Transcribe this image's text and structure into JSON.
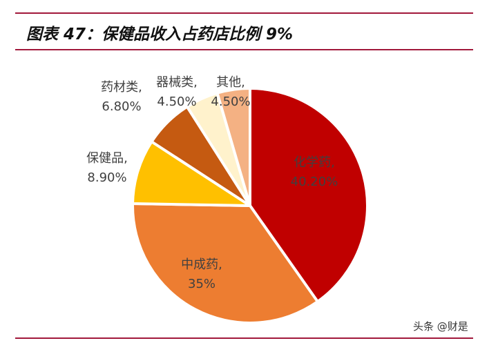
{
  "title": "图表 47：保健品收入占药店比例 9%",
  "watermark": "头条 @财是",
  "chart_data": {
    "type": "pie",
    "title": "图表 47：保健品收入占药店比例 9%",
    "start": "12 o'clock, clockwise",
    "slices": [
      {
        "name": "化学药",
        "value": 40.2,
        "label": "40.20%",
        "color": "#c00000"
      },
      {
        "name": "中成药",
        "value": 35,
        "label": "35%",
        "color": "#ed7d31"
      },
      {
        "name": "保健品",
        "value": 8.9,
        "label": "8.90%",
        "color": "#ffc000"
      },
      {
        "name": "药材类",
        "value": 6.8,
        "label": "6.80%",
        "color": "#c55a11"
      },
      {
        "name": "器械类",
        "value": 4.5,
        "label": "4.50%",
        "color": "#fff2cc"
      },
      {
        "name": "其他",
        "value": 4.5,
        "label": "4.50%",
        "color": "#f4b183"
      }
    ]
  }
}
